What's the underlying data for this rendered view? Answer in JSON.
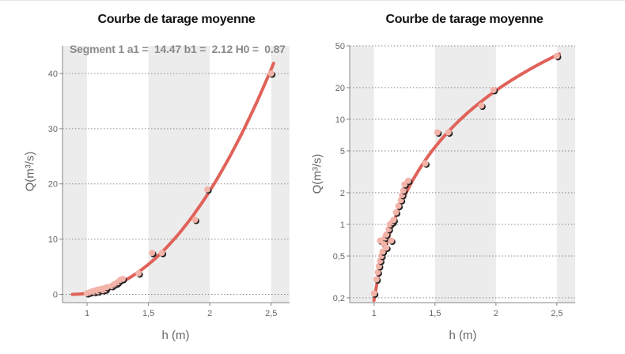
{
  "colors": {
    "curve": "#e0625a",
    "point": "#f2b3a9",
    "point_shadow": "#222222",
    "band": "#ececec",
    "grid": "#8a8a8a",
    "axis": "#888888",
    "tick_text": "#666666"
  },
  "annotation": "Segment 1 a1 =  14.47 b1 =  2.12 H0 =  0.87",
  "chart_data": [
    {
      "type": "scatter",
      "title": "Courbe de tarage moyenne",
      "xlabel": "h (m)",
      "ylabel": "Q(m³/s)",
      "xlim": [
        0.8,
        2.65
      ],
      "ylim": [
        -1.5,
        45
      ],
      "y_scale": "linear",
      "grid": "y dotted",
      "x_ticks": [
        {
          "v": 1,
          "label": "1"
        },
        {
          "v": 1.5,
          "label": "1,5"
        },
        {
          "v": 2,
          "label": "2"
        },
        {
          "v": 2.5,
          "label": "2,5"
        }
      ],
      "y_ticks": [
        {
          "v": 0,
          "label": "0"
        },
        {
          "v": 10,
          "label": "10"
        },
        {
          "v": 20,
          "label": "20"
        },
        {
          "v": 30,
          "label": "30"
        },
        {
          "v": 40,
          "label": "40"
        }
      ],
      "bands": [
        [
          0.8,
          1.0
        ],
        [
          1.5,
          2.0
        ],
        [
          2.5,
          2.65
        ]
      ],
      "curve": {
        "a1": 14.47,
        "b1": 2.12,
        "H0": 0.87,
        "x_from": 0.88,
        "x_to": 2.52
      },
      "series": [
        {
          "points": [
            [
              1.0,
              0.2
            ],
            [
              1.02,
              0.35
            ],
            [
              1.04,
              0.5
            ],
            [
              1.05,
              0.6
            ],
            [
              1.06,
              0.45
            ],
            [
              1.07,
              0.7
            ],
            [
              1.08,
              0.8
            ],
            [
              1.09,
              0.55
            ],
            [
              1.1,
              0.9
            ],
            [
              1.12,
              1.0
            ],
            [
              1.13,
              0.75
            ],
            [
              1.14,
              1.1
            ],
            [
              1.15,
              0.9
            ],
            [
              1.16,
              1.3
            ],
            [
              1.2,
              1.5
            ],
            [
              1.22,
              1.8
            ],
            [
              1.24,
              2.0
            ],
            [
              1.25,
              2.2
            ],
            [
              1.27,
              2.6
            ],
            [
              1.29,
              2.8
            ],
            [
              1.42,
              3.8
            ],
            [
              1.53,
              7.5
            ],
            [
              1.61,
              7.5
            ],
            [
              1.88,
              13.5
            ],
            [
              1.98,
              19.0
            ],
            [
              2.5,
              40.0
            ]
          ]
        }
      ]
    },
    {
      "type": "scatter",
      "title": "Courbe de tarage moyenne",
      "xlabel": "h (m)",
      "ylabel": "Q(m³/s)",
      "xlim": [
        0.8,
        2.65
      ],
      "ylim": [
        0.18,
        50
      ],
      "y_scale": "log",
      "grid": "y dotted",
      "x_ticks": [
        {
          "v": 1,
          "label": "1"
        },
        {
          "v": 1.5,
          "label": "1,5"
        },
        {
          "v": 2,
          "label": "2"
        },
        {
          "v": 2.5,
          "label": "2,5"
        }
      ],
      "y_ticks": [
        {
          "v": 0.2,
          "label": "0,2"
        },
        {
          "v": 0.5,
          "label": "0,5"
        },
        {
          "v": 1,
          "label": "1"
        },
        {
          "v": 2,
          "label": "2"
        },
        {
          "v": 5,
          "label": "5"
        },
        {
          "v": 10,
          "label": "10"
        },
        {
          "v": 20,
          "label": "20"
        },
        {
          "v": 50,
          "label": "50"
        }
      ],
      "bands": [
        [
          0.8,
          1.0
        ],
        [
          1.5,
          2.0
        ],
        [
          2.5,
          2.65
        ]
      ],
      "curve": {
        "a1": 14.47,
        "b1": 2.12,
        "H0": 0.87,
        "x_from": 0.98,
        "x_to": 2.52
      },
      "series": [
        {
          "points": [
            [
              1.0,
              0.22
            ],
            [
              1.02,
              0.3
            ],
            [
              1.03,
              0.35
            ],
            [
              1.04,
              0.4
            ],
            [
              1.05,
              0.45
            ],
            [
              1.05,
              0.7
            ],
            [
              1.06,
              0.5
            ],
            [
              1.07,
              0.55
            ],
            [
              1.08,
              0.65
            ],
            [
              1.09,
              0.75
            ],
            [
              1.1,
              0.8
            ],
            [
              1.1,
              0.6
            ],
            [
              1.12,
              0.9
            ],
            [
              1.13,
              1.0
            ],
            [
              1.14,
              0.7
            ],
            [
              1.15,
              1.05
            ],
            [
              1.16,
              1.1
            ],
            [
              1.18,
              1.3
            ],
            [
              1.2,
              1.5
            ],
            [
              1.22,
              1.7
            ],
            [
              1.23,
              1.9
            ],
            [
              1.24,
              2.1
            ],
            [
              1.25,
              2.4
            ],
            [
              1.28,
              2.6
            ],
            [
              1.42,
              3.8
            ],
            [
              1.52,
              7.5
            ],
            [
              1.61,
              7.5
            ],
            [
              1.88,
              13.5
            ],
            [
              1.98,
              19.0
            ],
            [
              2.5,
              40.0
            ]
          ]
        }
      ]
    }
  ]
}
